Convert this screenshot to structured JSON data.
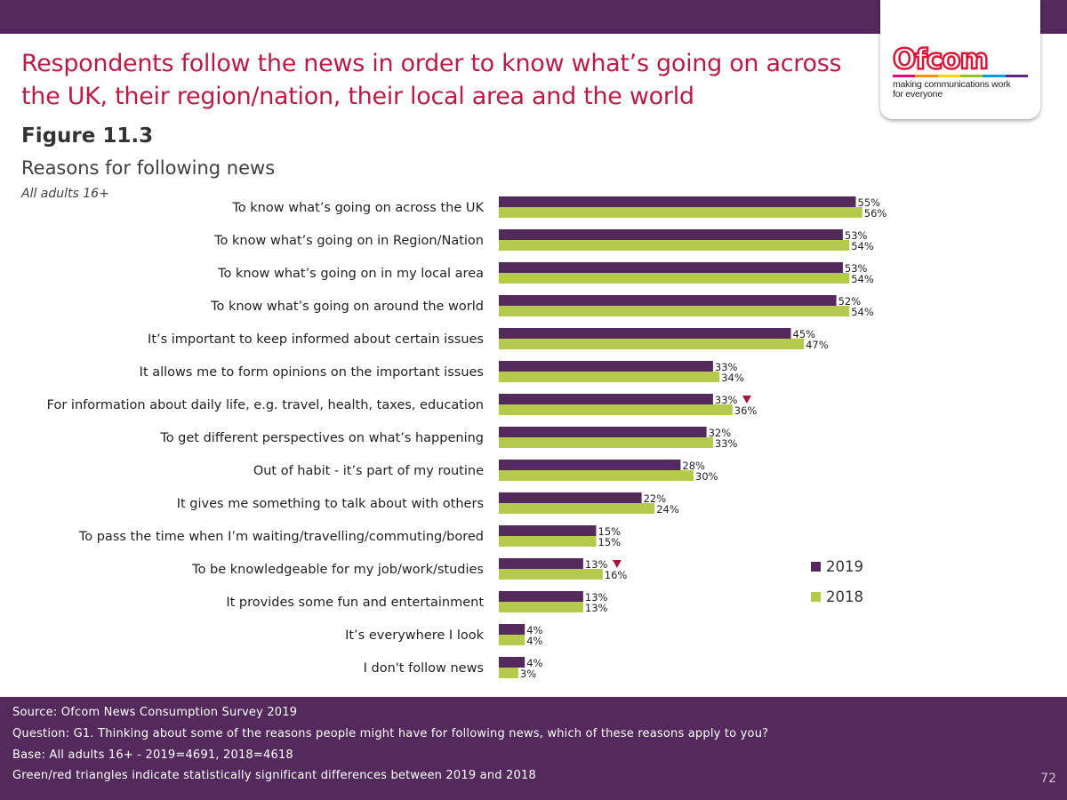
{
  "header": {
    "title_line1": "Respondents follow the news in order to know what’s going on across",
    "title_line2": "the UK, their region/nation, their local area and the world",
    "figure_label": "Figure 11.3",
    "subtitle": "Reasons for following news",
    "base_note": "All adults 16+"
  },
  "logo": {
    "wordmark": "Ofcom",
    "tagline_line1": "making communications work",
    "tagline_line2": "for everyone",
    "strip_colors": [
      "#e4007c",
      "#f39200",
      "#ffd500",
      "#95c11f",
      "#009fe3",
      "#662483"
    ]
  },
  "colors": {
    "brand_purple": "#54295c",
    "headline_red": "#b51d47",
    "bar_2019": "#54295c",
    "bar_2018": "#b5c94c",
    "significance_down": "#a3163b"
  },
  "legend": {
    "items": [
      {
        "label": "2019",
        "color": "#54295c"
      },
      {
        "label": "2018",
        "color": "#b5c94c"
      }
    ]
  },
  "chart_data": {
    "type": "bar",
    "orientation": "horizontal",
    "xlim": [
      0,
      100
    ],
    "grid": false,
    "legend_placement": "right",
    "categories": [
      "To know what’s going on across the UK",
      "To know what’s going on in Region/Nation",
      "To know what’s going on in my local area",
      "To know what’s going on around the world",
      "It’s important to keep informed about certain issues",
      "It allows me to form opinions on the important issues",
      "For information about daily life, e.g. travel, health, taxes, education",
      "To get different perspectives on what’s happening",
      "Out of habit - it’s part of my routine",
      "It gives me something to talk about with others",
      "To pass the time when I’m waiting/travelling/commuting/bored",
      "To be knowledgeable for my job/work/studies",
      "It provides some fun and entertainment",
      "It’s everywhere I look",
      "I don't follow news"
    ],
    "series": [
      {
        "name": "2019",
        "values": [
          55,
          53,
          53,
          52,
          45,
          33,
          33,
          32,
          28,
          22,
          15,
          13,
          13,
          4,
          4
        ]
      },
      {
        "name": "2018",
        "values": [
          56,
          54,
          54,
          54,
          47,
          34,
          36,
          33,
          30,
          24,
          15,
          16,
          13,
          4,
          3
        ]
      }
    ],
    "value_suffix": "%",
    "significant_decrease_2019": [
      "For information about daily life, e.g. travel, health, taxes, education",
      "To be knowledgeable for my job/work/studies"
    ]
  },
  "footer": {
    "source": "Source: Ofcom News Consumption Survey 2019",
    "question": "Question: G1. Thinking about some of the reasons people might have for following news, which of these reasons apply to you?",
    "base": "Base: All adults 16+ - 2019=4691, 2018=4618",
    "note": "Green/red triangles indicate statistically significant differences between 2019 and 2018",
    "page_number": "72"
  }
}
